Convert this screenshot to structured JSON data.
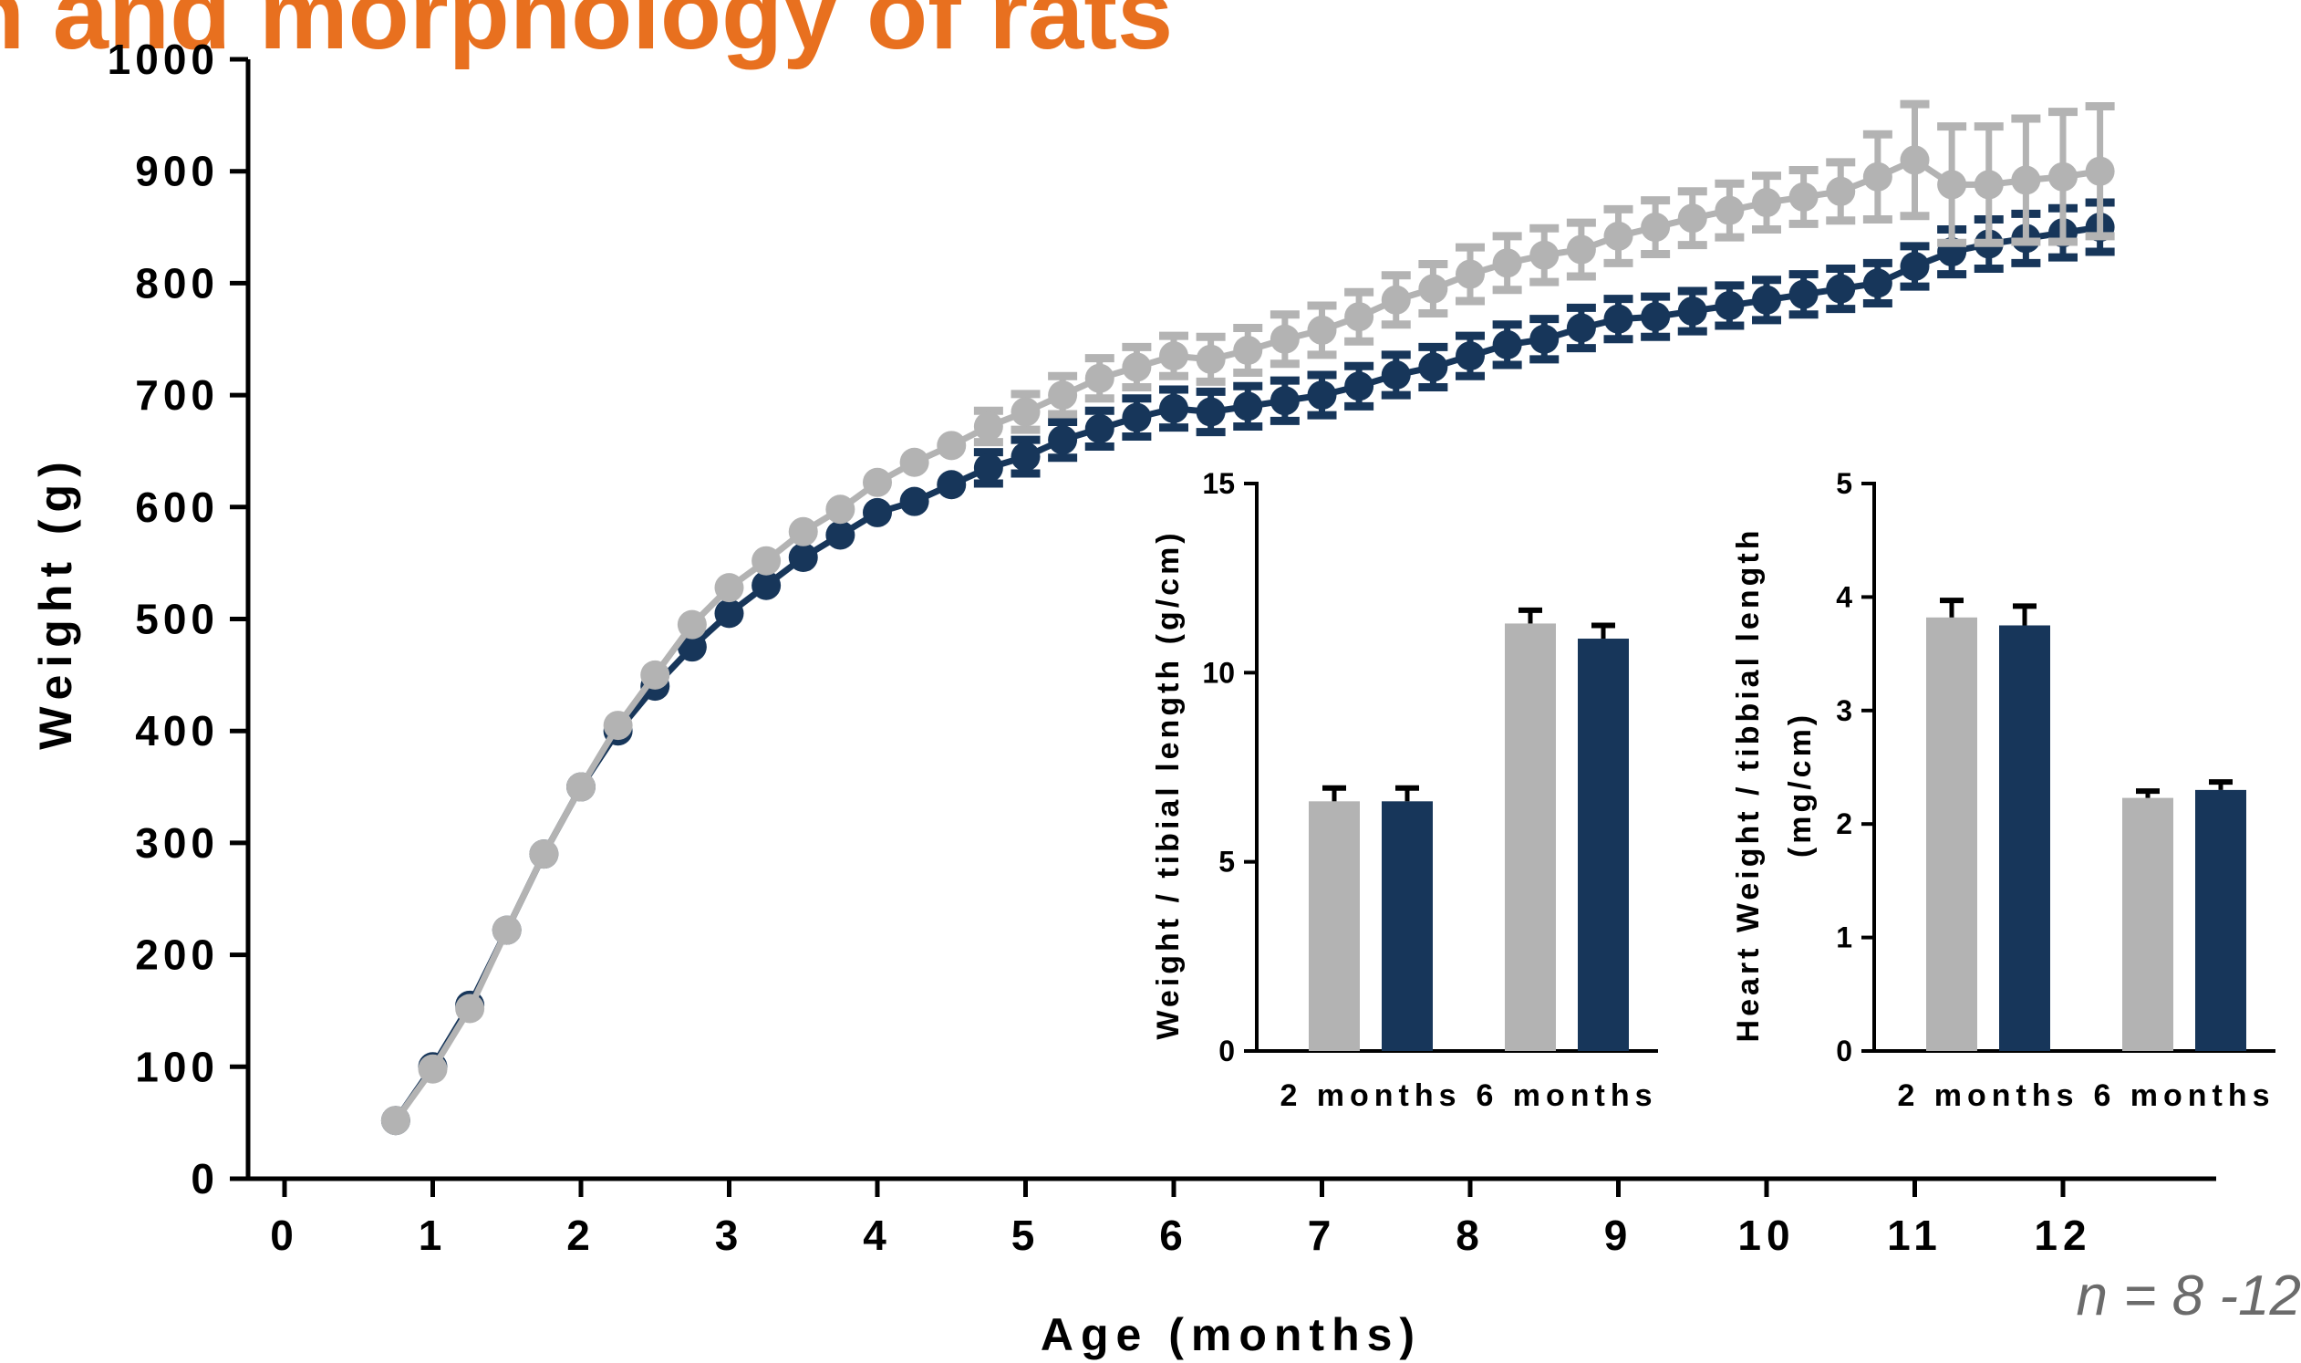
{
  "header": {
    "title_fragment": "n and morphology of rats"
  },
  "note": "n = 8 -12",
  "colors": {
    "gray_series": "#b3b3b3",
    "navy_series": "#17365a",
    "axis": "#000000",
    "title": "#E8701F"
  },
  "chart_data": [
    {
      "type": "line",
      "title": "",
      "xlabel": "Age (months)",
      "ylabel": "Weight (g)",
      "xlim": [
        -0.25,
        13.0
      ],
      "ylim": [
        0,
        1000
      ],
      "xticks": [
        "0",
        "1",
        "2",
        "3",
        "4",
        "5",
        "6",
        "7",
        "8",
        "9",
        "10",
        "11",
        "12"
      ],
      "yticks": [
        "0",
        "100",
        "200",
        "300",
        "400",
        "500",
        "600",
        "700",
        "800",
        "900",
        "1000"
      ],
      "grid": false,
      "legend": "none",
      "x": [
        0.75,
        1.0,
        1.25,
        1.5,
        1.75,
        2.0,
        2.25,
        2.5,
        2.75,
        3.0,
        3.25,
        3.5,
        3.75,
        4.0,
        4.25,
        4.5,
        4.75,
        5.0,
        5.25,
        5.5,
        5.75,
        6.0,
        6.25,
        6.5,
        6.75,
        7.0,
        7.25,
        7.5,
        7.75,
        8.0,
        8.25,
        8.5,
        8.75,
        9.0,
        9.25,
        9.5,
        9.75,
        10.0,
        10.25,
        10.5,
        10.75,
        11.0,
        11.25,
        11.5,
        11.75,
        12.0,
        12.25
      ],
      "series": [
        {
          "color": "#17365a",
          "values": [
            52,
            100,
            155,
            222,
            290,
            350,
            400,
            440,
            475,
            505,
            530,
            555,
            575,
            595,
            605,
            620,
            635,
            645,
            660,
            670,
            680,
            688,
            685,
            690,
            695,
            700,
            708,
            718,
            725,
            735,
            745,
            750,
            760,
            768,
            770,
            775,
            780,
            785,
            790,
            795,
            800,
            815,
            828,
            835,
            840,
            845,
            850
          ],
          "errors": [
            0,
            0,
            0,
            0,
            0,
            0,
            0,
            0,
            0,
            0,
            0,
            0,
            0,
            0,
            0,
            0,
            14,
            15,
            16,
            16,
            17,
            17,
            18,
            18,
            18,
            18,
            18,
            18,
            18,
            18,
            18,
            18,
            18,
            18,
            18,
            18,
            18,
            18,
            18,
            18,
            18,
            18,
            20,
            22,
            22,
            22,
            22
          ]
        },
        {
          "color": "#b3b3b3",
          "values": [
            52,
            98,
            152,
            222,
            290,
            350,
            405,
            450,
            495,
            528,
            552,
            578,
            598,
            622,
            640,
            655,
            672,
            685,
            700,
            715,
            725,
            735,
            732,
            740,
            750,
            758,
            770,
            785,
            795,
            808,
            818,
            825,
            830,
            842,
            850,
            858,
            865,
            872,
            877,
            882,
            895,
            910,
            888,
            888,
            892,
            895,
            900
          ],
          "errors": [
            0,
            0,
            0,
            0,
            0,
            0,
            0,
            0,
            0,
            0,
            0,
            0,
            0,
            0,
            0,
            0,
            14,
            16,
            17,
            18,
            18,
            18,
            20,
            20,
            22,
            22,
            22,
            22,
            22,
            24,
            24,
            24,
            24,
            24,
            24,
            24,
            24,
            24,
            24,
            26,
            38,
            50,
            52,
            52,
            55,
            58,
            58
          ]
        }
      ]
    },
    {
      "type": "bar",
      "title": "",
      "xlabel": "",
      "ylabel": "Weight / tibial length (g/cm)",
      "ylim": [
        0,
        15
      ],
      "yticks": [
        "0",
        "5",
        "10",
        "15"
      ],
      "categories": [
        "2 months",
        "6 months"
      ],
      "series": [
        {
          "color": "#b3b3b3",
          "values": [
            6.6,
            11.3
          ],
          "errors": [
            0.35,
            0.35
          ]
        },
        {
          "color": "#17365a",
          "values": [
            6.6,
            10.9
          ],
          "errors": [
            0.35,
            0.35
          ]
        }
      ]
    },
    {
      "type": "bar",
      "title": "",
      "xlabel": "",
      "ylabel": "Heart Weight / tibbial length (mg/cm)",
      "ylim": [
        0,
        5
      ],
      "yticks": [
        "0",
        "1",
        "2",
        "3",
        "4",
        "5"
      ],
      "categories": [
        "2 months",
        "6 months"
      ],
      "series": [
        {
          "color": "#b3b3b3",
          "values": [
            3.82,
            2.23
          ],
          "errors": [
            0.15,
            0.06
          ]
        },
        {
          "color": "#17365a",
          "values": [
            3.75,
            2.3
          ],
          "errors": [
            0.17,
            0.07
          ]
        }
      ]
    }
  ]
}
